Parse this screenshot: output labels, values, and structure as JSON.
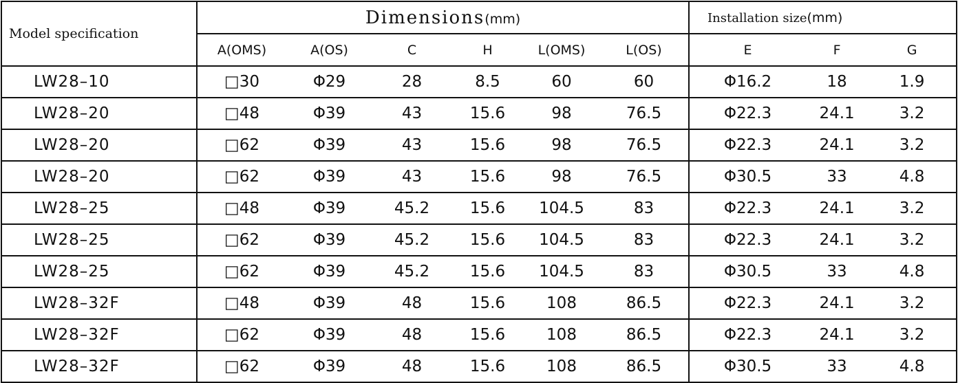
{
  "header": {
    "model": "Model specification",
    "dimensions": {
      "title": "Dimensions",
      "unit": "(mm)"
    },
    "installation": {
      "title": "Installation size",
      "unit": "(mm)"
    },
    "columns": [
      "A(OMS)",
      "A(OS)",
      "C",
      "H",
      "L(OMS)",
      "L(OS)",
      "E",
      "F",
      "G"
    ]
  },
  "table": {
    "rows": [
      [
        "LW28–10",
        "□30",
        "Φ29",
        "28",
        "8.5",
        "60",
        "60",
        "Φ16.2",
        "18",
        "1.9"
      ],
      [
        "LW28–20",
        "□48",
        "Φ39",
        "43",
        "15.6",
        "98",
        "76.5",
        "Φ22.3",
        "24.1",
        "3.2"
      ],
      [
        "LW28–20",
        "□62",
        "Φ39",
        "43",
        "15.6",
        "98",
        "76.5",
        "Φ22.3",
        "24.1",
        "3.2"
      ],
      [
        "LW28–20",
        "□62",
        "Φ39",
        "43",
        "15.6",
        "98",
        "76.5",
        "Φ30.5",
        "33",
        "4.8"
      ],
      [
        "LW28–25",
        "□48",
        "Φ39",
        "45.2",
        "15.6",
        "104.5",
        "83",
        "Φ22.3",
        "24.1",
        "3.2"
      ],
      [
        "LW28–25",
        "□62",
        "Φ39",
        "45.2",
        "15.6",
        "104.5",
        "83",
        "Φ22.3",
        "24.1",
        "3.2"
      ],
      [
        "LW28–25",
        "□62",
        "Φ39",
        "45.2",
        "15.6",
        "104.5",
        "83",
        "Φ30.5",
        "33",
        "4.8"
      ],
      [
        "LW28–32F",
        "□48",
        "Φ39",
        "48",
        "15.6",
        "108",
        "86.5",
        "Φ22.3",
        "24.1",
        "3.2"
      ],
      [
        "LW28–32F",
        "□62",
        "Φ39",
        "48",
        "15.6",
        "108",
        "86.5",
        "Φ22.3",
        "24.1",
        "3.2"
      ],
      [
        "LW28–32F",
        "□62",
        "Φ39",
        "48",
        "15.6",
        "108",
        "86.5",
        "Φ30.5",
        "33",
        "4.8"
      ]
    ]
  }
}
